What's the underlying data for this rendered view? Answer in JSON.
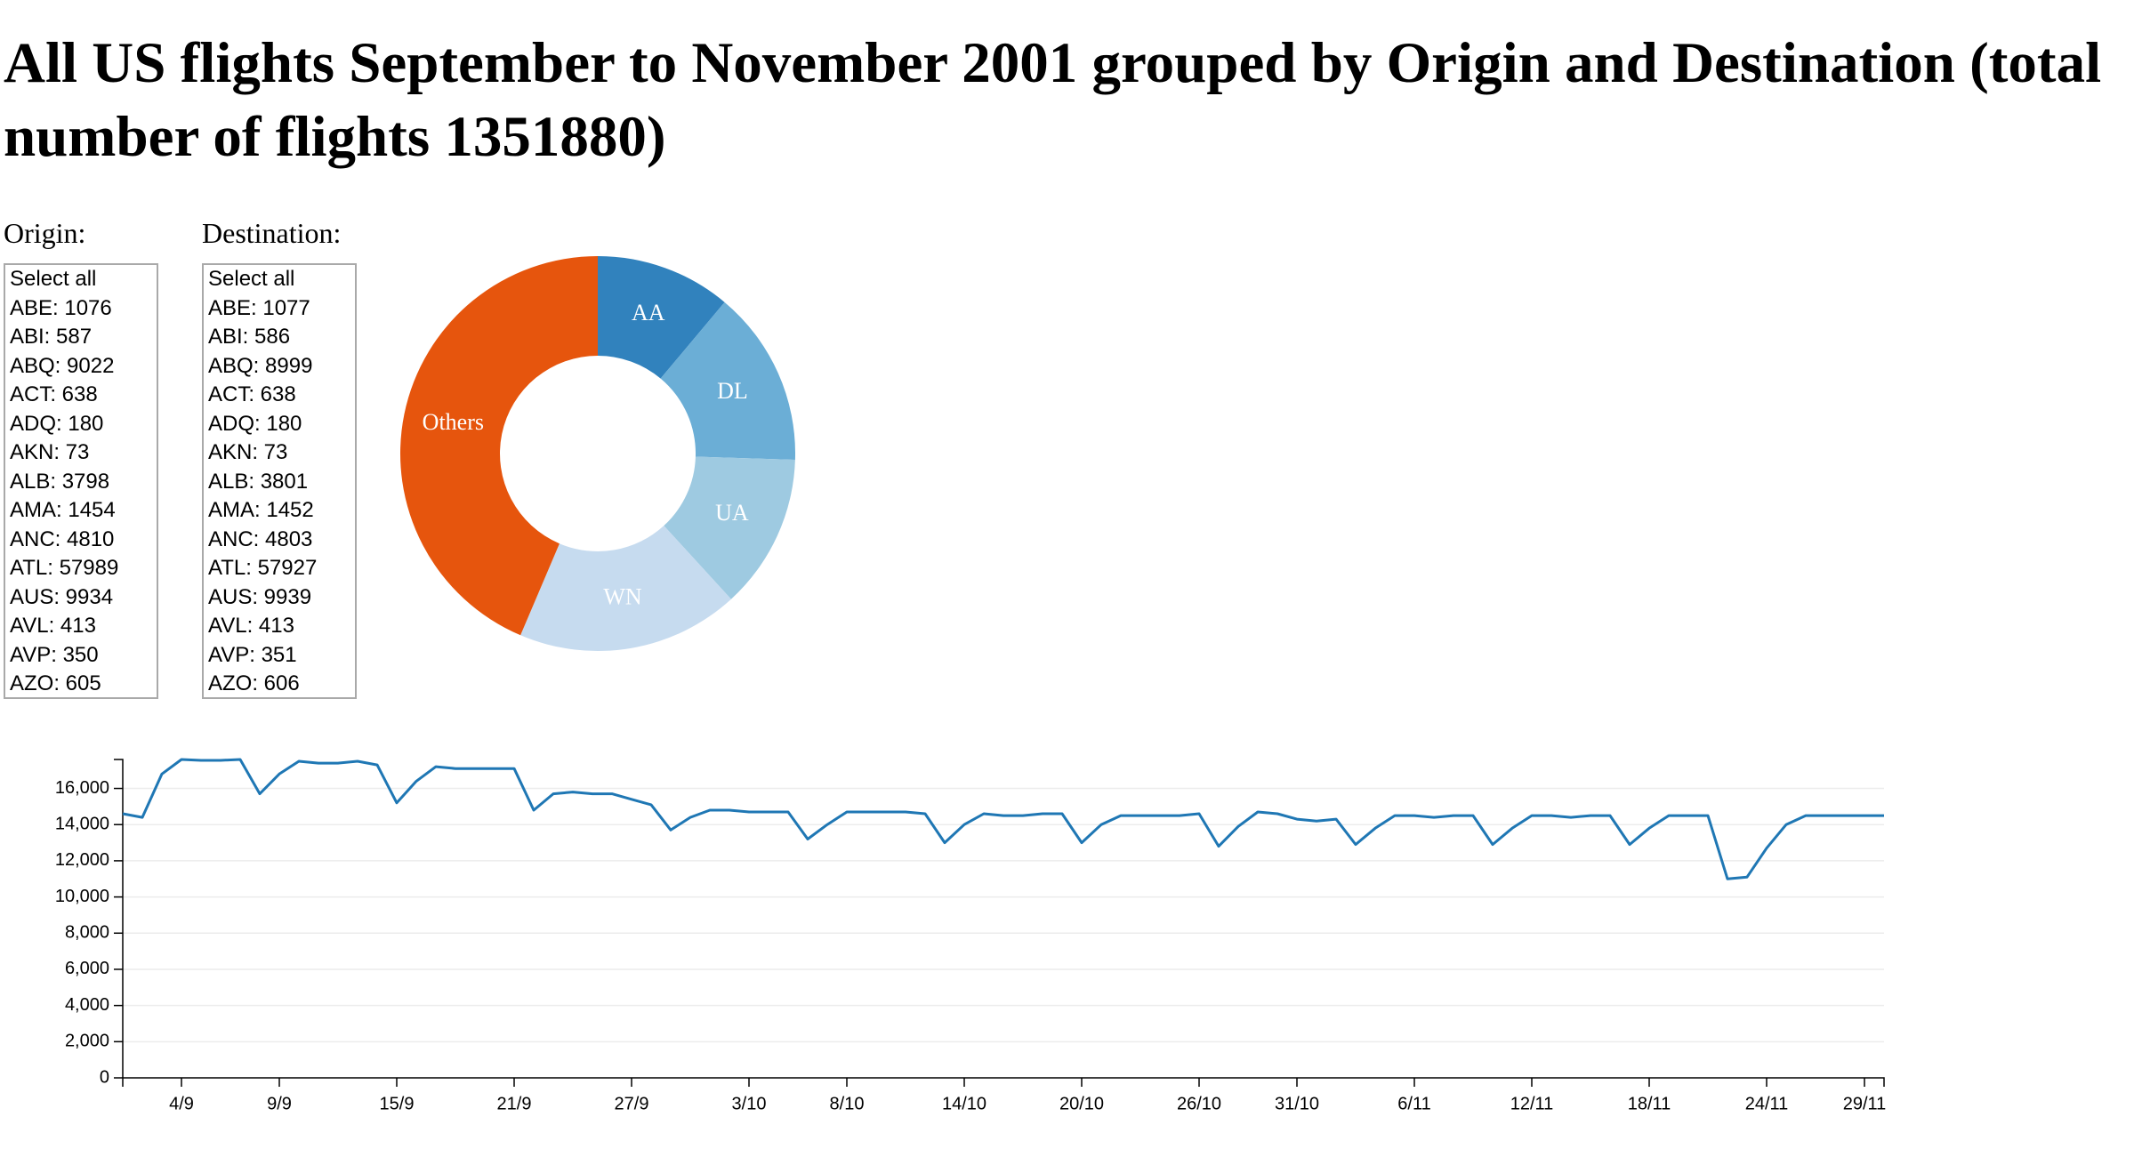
{
  "title": "All US flights September to November 2001 grouped by Origin and Destination (total number of flights 1351880)",
  "origin": {
    "label": "Origin:",
    "options": [
      "Select all",
      "ABE: 1076",
      "ABI: 587",
      "ABQ: 9022",
      "ACT: 638",
      "ADQ: 180",
      "AKN: 73",
      "ALB: 3798",
      "AMA: 1454",
      "ANC: 4810",
      "ATL: 57989",
      "AUS: 9934",
      "AVL: 413",
      "AVP: 350",
      "AZO: 605"
    ]
  },
  "destination": {
    "label": "Destination:",
    "options": [
      "Select all",
      "ABE: 1077",
      "ABI: 586",
      "ABQ: 8999",
      "ACT: 638",
      "ADQ: 180",
      "AKN: 73",
      "ALB: 3801",
      "AMA: 1452",
      "ANC: 4803",
      "ATL: 57927",
      "AUS: 9939",
      "AVL: 413",
      "AVP: 351",
      "AZO: 606"
    ]
  },
  "chart_data": [
    {
      "type": "pie",
      "subtype": "donut",
      "categories": [
        "AA",
        "DL",
        "UA",
        "WN",
        "Others"
      ],
      "values": [
        0.111,
        0.144,
        0.127,
        0.182,
        0.436
      ],
      "colors": [
        "#3182bd",
        "#6baed6",
        "#9ecae1",
        "#c6dbef",
        "#e6550d"
      ]
    },
    {
      "type": "line",
      "color": "#1f77b4",
      "ylim": [
        0,
        17600
      ],
      "yticks": [
        0,
        2000,
        4000,
        6000,
        8000,
        10000,
        12000,
        14000,
        16000
      ],
      "ytick_labels": [
        "0",
        "2,000",
        "4,000",
        "6,000",
        "8,000",
        "10,000",
        "12,000",
        "14,000",
        "16,000"
      ],
      "xrange": [
        "2001-09-01",
        "2001-11-30"
      ],
      "xticks": [
        "2001-09-04",
        "2001-09-09",
        "2001-09-15",
        "2001-09-21",
        "2001-09-27",
        "2001-10-03",
        "2001-10-08",
        "2001-10-14",
        "2001-10-20",
        "2001-10-26",
        "2001-10-31",
        "2001-11-06",
        "2001-11-12",
        "2001-11-18",
        "2001-11-24",
        "2001-11-29"
      ],
      "xtick_labels": [
        "4/9",
        "9/9",
        "15/9",
        "21/9",
        "27/9",
        "3/10",
        "8/10",
        "14/10",
        "20/10",
        "26/10",
        "31/10",
        "6/11",
        "12/11",
        "18/11",
        "24/11",
        "29/11"
      ],
      "series": [
        {
          "x": [
            "2001-09-01",
            "2001-09-02",
            "2001-09-03",
            "2001-09-04",
            "2001-09-05",
            "2001-09-06",
            "2001-09-07",
            "2001-09-08",
            "2001-09-09",
            "2001-09-10",
            "2001-09-11",
            "2001-09-12",
            "2001-09-13",
            "2001-09-14",
            "2001-09-15",
            "2001-09-16",
            "2001-09-17",
            "2001-09-18",
            "2001-09-19",
            "2001-09-20",
            "2001-09-21",
            "2001-09-22",
            "2001-09-23",
            "2001-09-24",
            "2001-09-25",
            "2001-09-26",
            "2001-09-27",
            "2001-09-28",
            "2001-09-29",
            "2001-09-30",
            "2001-10-01",
            "2001-10-02",
            "2001-10-03",
            "2001-10-04",
            "2001-10-05",
            "2001-10-06",
            "2001-10-07",
            "2001-10-08",
            "2001-10-09",
            "2001-10-10",
            "2001-10-11",
            "2001-10-12",
            "2001-10-13",
            "2001-10-14",
            "2001-10-15",
            "2001-10-16",
            "2001-10-17",
            "2001-10-18",
            "2001-10-19",
            "2001-10-20",
            "2001-10-21",
            "2001-10-22",
            "2001-10-23",
            "2001-10-24",
            "2001-10-25",
            "2001-10-26",
            "2001-10-27",
            "2001-10-28",
            "2001-10-29",
            "2001-10-30",
            "2001-10-31",
            "2001-11-01",
            "2001-11-02",
            "2001-11-03",
            "2001-11-04",
            "2001-11-05",
            "2001-11-06",
            "2001-11-07",
            "2001-11-08",
            "2001-11-09",
            "2001-11-10",
            "2001-11-11",
            "2001-11-12",
            "2001-11-13",
            "2001-11-14",
            "2001-11-15",
            "2001-11-16",
            "2001-11-17",
            "2001-11-18",
            "2001-11-19",
            "2001-11-20",
            "2001-11-21",
            "2001-11-22",
            "2001-11-23",
            "2001-11-24",
            "2001-11-25",
            "2001-11-26",
            "2001-11-27",
            "2001-11-28",
            "2001-11-29",
            "2001-11-30"
          ],
          "y": [
            14600,
            14400,
            16800,
            17600,
            17550,
            17550,
            17600,
            15700,
            16800,
            17500,
            17400,
            17400,
            17500,
            17300,
            15200,
            16400,
            17200,
            17100,
            17100,
            17100,
            17100,
            14800,
            15700,
            15800,
            15700,
            15700,
            15400,
            15100,
            13700,
            14400,
            14800,
            14800,
            14700,
            14700,
            14700,
            13200,
            14000,
            14700,
            14700,
            14700,
            14700,
            14600,
            13000,
            14000,
            14600,
            14500,
            14500,
            14600,
            14600,
            13000,
            14000,
            14500,
            14500,
            14500,
            14500,
            14600,
            12800,
            13900,
            14700,
            14600,
            14300,
            14200,
            14300,
            12900,
            13800,
            14500,
            14500,
            14400,
            14500,
            14500,
            12900,
            13800,
            14500,
            14500,
            14400,
            14500,
            14500,
            12900,
            13800,
            14500,
            14500,
            14500,
            11000,
            11100,
            12700,
            14000,
            14500,
            14500,
            14500,
            14500,
            14500
          ]
        }
      ]
    }
  ]
}
